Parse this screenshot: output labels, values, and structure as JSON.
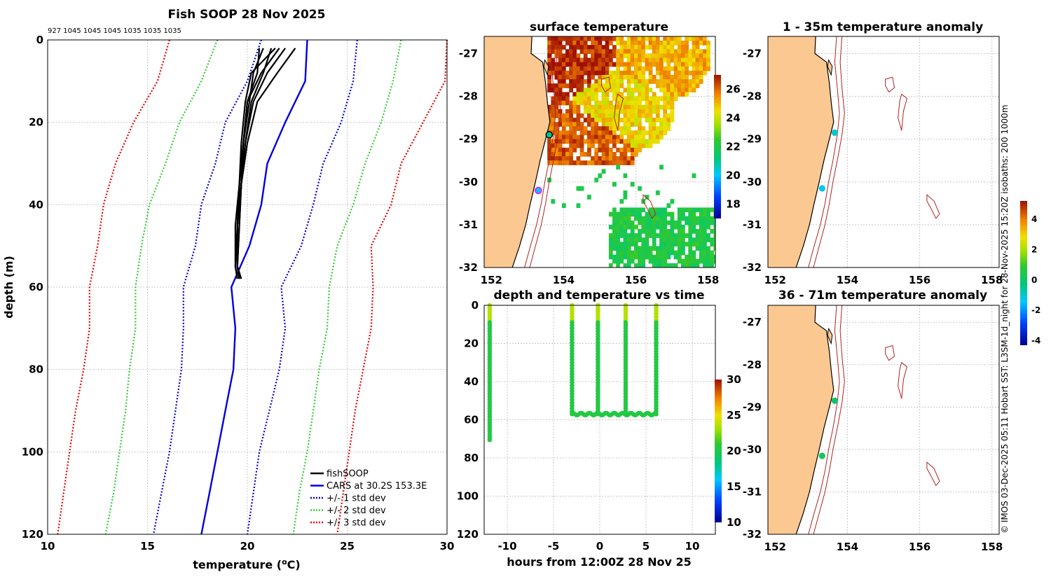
{
  "credit": "© IMOS 03-Dec-2025 05:11 Hobart SST: L3SM-1d_night for 28-Nov-2025 15:20Z isobaths: 200  1000m",
  "colors": {
    "fishsoop": "#000000",
    "cars": "#0000dd",
    "std1": "#0000dd",
    "std2": "#33cc33",
    "std3": "#ee0000",
    "land": "#fcc891",
    "isobath": "#b22222"
  },
  "chart_data": [
    {
      "id": "profile",
      "type": "line",
      "title": "Fish SOOP 28 Nov 2025",
      "sensor_ids": "927 1045 1045 1045 1035 1035 1035",
      "xlabel": "temperature (",
      "xlabel_sup": "o",
      "xlabel_end": "C)",
      "ylabel": "depth (m)",
      "xlim": [
        10,
        30
      ],
      "ylim": [
        120,
        0
      ],
      "xticks": [
        "10",
        "15",
        "20",
        "25",
        "30"
      ],
      "yticks": [
        "0",
        "20",
        "40",
        "60",
        "80",
        "100",
        "120"
      ],
      "legend": {
        "position": "bottom-right",
        "entries": [
          "fishSOOP",
          "CARS at 30.2S 153.3E",
          "+/- 1 std dev",
          "+/- 2 std dev",
          "+/- 3 std dev"
        ]
      },
      "depth": [
        0,
        10,
        20,
        30,
        40,
        50,
        60,
        70,
        80,
        90,
        100,
        110,
        120
      ],
      "cars": [
        23.0,
        22.9,
        21.9,
        21.0,
        20.7,
        20.1,
        19.2,
        19.4,
        19.3,
        18.9,
        18.5,
        18.1,
        17.7
      ],
      "std1": [
        [
          20.7,
          25.5
        ],
        [
          20.0,
          25.3
        ],
        [
          18.9,
          24.7
        ],
        [
          18.4,
          23.8
        ],
        [
          17.7,
          23.3
        ],
        [
          17.4,
          22.7
        ],
        [
          16.8,
          21.7
        ],
        [
          16.8,
          21.9
        ],
        [
          16.7,
          21.6
        ],
        [
          16.4,
          21.1
        ],
        [
          16.1,
          20.6
        ],
        [
          15.7,
          20.3
        ],
        [
          15.3,
          20.0
        ]
      ],
      "std2": [
        [
          18.5,
          27.7
        ],
        [
          17.7,
          27.3
        ],
        [
          16.6,
          26.7
        ],
        [
          15.9,
          25.9
        ],
        [
          15.1,
          25.3
        ],
        [
          14.7,
          24.5
        ],
        [
          14.4,
          24.1
        ],
        [
          14.4,
          24.0
        ],
        [
          14.1,
          23.6
        ],
        [
          13.9,
          23.3
        ],
        [
          13.6,
          23.0
        ],
        [
          13.3,
          22.6
        ],
        [
          12.9,
          22.3
        ]
      ],
      "std3": [
        [
          16.1,
          30.0
        ],
        [
          15.5,
          29.9
        ],
        [
          14.3,
          28.8
        ],
        [
          13.4,
          27.7
        ],
        [
          12.8,
          27.2
        ],
        [
          12.5,
          26.2
        ],
        [
          12.1,
          26.3
        ],
        [
          12.1,
          26.2
        ],
        [
          11.8,
          25.8
        ],
        [
          11.4,
          25.4
        ],
        [
          11.1,
          25.1
        ],
        [
          10.8,
          24.8
        ],
        [
          10.5,
          24.5
        ]
      ],
      "fishsoop_depth": [
        2,
        8,
        15,
        25,
        35,
        45,
        55,
        58
      ],
      "fishsoop": [
        [
          21.2,
          20.8,
          20.2,
          19.9,
          19.7,
          19.6,
          19.5,
          19.6
        ],
        [
          21.6,
          20.7,
          20.0,
          19.8,
          19.6,
          19.4,
          19.4,
          19.5
        ],
        [
          21.9,
          21.0,
          20.3,
          19.9,
          19.7,
          19.5,
          19.5,
          19.6
        ],
        [
          20.8,
          20.3,
          20.1,
          19.8,
          19.6,
          19.5,
          19.5,
          19.6
        ],
        [
          22.4,
          21.5,
          20.5,
          20.0,
          19.7,
          19.6,
          19.5,
          19.7
        ],
        [
          21.4,
          20.2,
          19.9,
          19.7,
          19.6,
          19.5,
          19.4,
          19.5
        ],
        [
          20.6,
          20.5,
          20.0,
          19.8,
          19.7,
          19.5,
          19.5,
          19.6
        ]
      ]
    },
    {
      "id": "sst",
      "type": "heatmap",
      "title": "surface temperature",
      "xlim": [
        151.8,
        158.2
      ],
      "ylim": [
        -32,
        -26.6
      ],
      "xticks": [
        "152",
        "154",
        "156",
        "158"
      ],
      "yticks": [
        "-27",
        "-28",
        "-29",
        "-30",
        "-31",
        "-32"
      ],
      "colorbar": {
        "range": [
          17,
          27
        ],
        "ticks": [
          "18",
          "20",
          "22",
          "24",
          "26"
        ]
      },
      "samples": [
        {
          "lon": 153.6,
          "lat": -28.9,
          "value": 21
        },
        {
          "lon": 153.3,
          "lat": -30.2,
          "value": 20
        }
      ],
      "warm_patches": [
        {
          "lon": 154.2,
          "lat": -27.0,
          "value": 26.5
        },
        {
          "lon": 156.5,
          "lat": -27.0,
          "value": 25.0
        },
        {
          "lon": 155.5,
          "lat": -28.2,
          "value": 24.5
        },
        {
          "lon": 154.5,
          "lat": -29.0,
          "value": 26.0
        },
        {
          "lon": 156.8,
          "lat": -31.4,
          "value": 22.0
        }
      ]
    },
    {
      "id": "time",
      "type": "scatter",
      "title": "depth and temperature vs time",
      "xlabel": "hours from 12:00Z 28 Nov 25",
      "xlim": [
        -12.5,
        12.5
      ],
      "ylim": [
        120,
        0
      ],
      "xticks": [
        "-10",
        "-5",
        "0",
        "5",
        "10"
      ],
      "yticks": [
        "0",
        "20",
        "40",
        "60",
        "80",
        "100",
        "120"
      ],
      "colorbar": {
        "range": [
          10,
          30
        ],
        "ticks": [
          "10",
          "15",
          "20",
          "25",
          "30"
        ]
      },
      "casts": [
        {
          "hour": -11.9,
          "max_depth": 71
        },
        {
          "hour": -3.0,
          "max_depth": 57
        },
        {
          "hour": -0.2,
          "max_depth": 57
        },
        {
          "hour": 2.8,
          "max_depth": 57
        },
        {
          "hour": 6.1,
          "max_depth": 57
        }
      ],
      "bottom_segment": {
        "from_hour": -3.0,
        "to_hour": 6.1,
        "depth": 57
      }
    },
    {
      "id": "anom1",
      "type": "scatter",
      "title": "1 - 35m temperature anomaly",
      "xlim": [
        151.8,
        158.2
      ],
      "ylim": [
        -32,
        -26.6
      ],
      "xticks": [
        "152",
        "154",
        "156",
        "158"
      ],
      "yticks": [
        "-27",
        "-28",
        "-29",
        "-30",
        "-31",
        "-32"
      ],
      "points": [
        {
          "lon": 153.65,
          "lat": -28.85,
          "anomaly": -1.0
        },
        {
          "lon": 153.3,
          "lat": -30.15,
          "anomaly": -1.3
        }
      ]
    },
    {
      "id": "anom2",
      "type": "scatter",
      "title": "36 - 71m temperature anomaly",
      "xlim": [
        151.8,
        158.2
      ],
      "ylim": [
        -32,
        -26.6
      ],
      "xticks": [
        "152",
        "154",
        "156",
        "158"
      ],
      "yticks": [
        "-27",
        "-28",
        "-29",
        "-30",
        "-31",
        "-32"
      ],
      "colorbar": {
        "range": [
          -4.3,
          5.2
        ],
        "ticks": [
          "4",
          "2",
          "0",
          "-2",
          "-4"
        ]
      },
      "points": [
        {
          "lon": 153.65,
          "lat": -28.85,
          "anomaly": 0.0
        },
        {
          "lon": 153.3,
          "lat": -30.15,
          "anomaly": 0.2
        }
      ]
    }
  ]
}
